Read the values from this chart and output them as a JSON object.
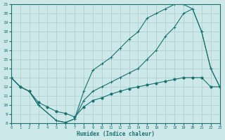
{
  "xlabel": "Humidex (Indice chaleur)",
  "bg_color": "#cce8e8",
  "line_color": "#1a7070",
  "grid_color": "#aacccc",
  "xlim": [
    0,
    23
  ],
  "ylim": [
    8,
    21
  ],
  "xticks": [
    0,
    1,
    2,
    3,
    4,
    5,
    6,
    7,
    8,
    9,
    10,
    11,
    12,
    13,
    14,
    15,
    16,
    17,
    18,
    19,
    20,
    21,
    22,
    23
  ],
  "yticks": [
    8,
    9,
    10,
    11,
    12,
    13,
    14,
    15,
    16,
    17,
    18,
    19,
    20,
    21
  ],
  "line1_x": [
    0,
    1,
    2,
    3,
    5,
    6,
    7,
    8,
    9,
    10,
    11,
    12,
    13,
    14,
    15,
    16,
    17,
    18,
    19,
    20,
    21,
    22,
    23
  ],
  "line1_y": [
    13,
    12,
    11.5,
    10,
    8.3,
    8.1,
    8.5,
    10.5,
    11.5,
    12.0,
    12.5,
    13.0,
    13.5,
    14.0,
    15.0,
    16.0,
    17.5,
    18.5,
    20.0,
    20.5,
    18.0,
    14.0,
    12.0
  ],
  "line2_x": [
    0,
    1,
    2,
    3,
    5,
    6,
    7,
    8,
    9,
    10,
    11,
    12,
    13,
    14,
    15,
    16,
    17,
    18,
    19,
    20,
    21,
    22,
    23
  ],
  "line2_y": [
    13,
    12,
    11.5,
    10,
    8.3,
    8.1,
    8.5,
    11.5,
    13.8,
    14.5,
    15.2,
    16.2,
    17.2,
    18.0,
    19.5,
    20.0,
    20.5,
    21.0,
    21.0,
    20.5,
    18.0,
    14.0,
    12.0
  ],
  "line3_x": [
    0,
    1,
    2,
    3,
    4,
    5,
    6,
    7,
    8,
    9,
    10,
    11,
    12,
    13,
    14,
    15,
    16,
    17,
    18,
    19,
    20,
    21,
    22,
    23
  ],
  "line3_y": [
    13,
    12,
    11.5,
    10.3,
    9.8,
    9.3,
    9.1,
    8.7,
    9.8,
    10.5,
    10.8,
    11.2,
    11.5,
    11.8,
    12.0,
    12.2,
    12.4,
    12.6,
    12.8,
    13.0,
    13.0,
    13.0,
    12.0,
    12.0
  ]
}
